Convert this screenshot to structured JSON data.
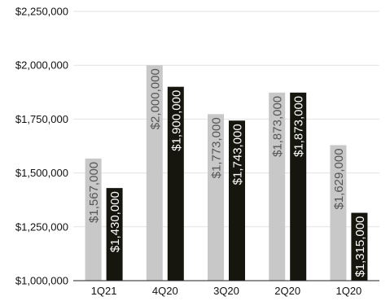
{
  "chart_data": {
    "type": "bar",
    "categories": [
      "1Q21",
      "4Q20",
      "3Q20",
      "2Q20",
      "1Q20"
    ],
    "series": [
      {
        "values": [
          1567000,
          2000000,
          1773000,
          1873000,
          1629000
        ],
        "color": "#c8c8c8",
        "label_color": "#555555"
      },
      {
        "values": [
          1430000,
          1900000,
          1743000,
          1873000,
          1315000
        ],
        "color": "#16160f",
        "label_color": "#ffffff"
      }
    ],
    "value_labels": [
      [
        "$1,567,000",
        "$2,000,000",
        "$1,773,000",
        "$1,873,000",
        "$1,629,000"
      ],
      [
        "$1,430,000",
        "$1,900,000",
        "$1,743,000",
        "$1,873,000",
        "$1,315,000"
      ]
    ],
    "y_ticks": [
      1000000,
      1250000,
      1500000,
      1750000,
      2000000,
      2250000
    ],
    "y_tick_labels": [
      "$1,000,000",
      "$1,250,000",
      "$1,500,000",
      "$1,750,000",
      "$2,000,000",
      "$2,250,000"
    ],
    "ylim": [
      1000000,
      2250000
    ],
    "grid": true,
    "legend": "none",
    "title": "",
    "xlabel": "",
    "ylabel": ""
  }
}
